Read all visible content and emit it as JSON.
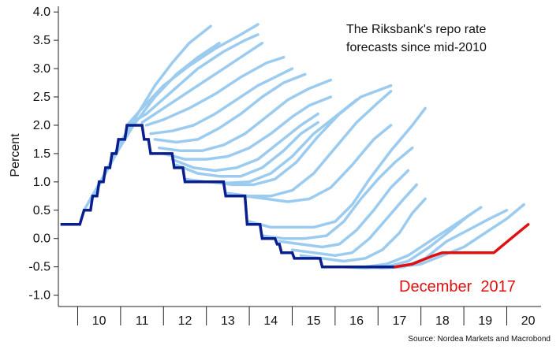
{
  "chart_data": {
    "type": "line",
    "title": "The Riksbank's repo rate forecasts since mid-2010",
    "title_lines": [
      "The Riksbank's repo rate",
      "forecasts since mid-2010"
    ],
    "ylabel": "Percent",
    "xlabel": "",
    "source": "Source: Nordea Markets and Macrobond",
    "annotation": "December  2017",
    "ylim": [
      -1.2,
      4.1
    ],
    "xlim": [
      9.55,
      20.8
    ],
    "y_ticks": [
      "4.0",
      "3.5",
      "3.0",
      "2.5",
      "2.0",
      "1.5",
      "1.0",
      "0.5",
      "0.0",
      "-0.5",
      "-1.0"
    ],
    "y_tick_values": [
      4.0,
      3.5,
      3.0,
      2.5,
      2.0,
      1.5,
      1.0,
      0.5,
      0.0,
      -0.5,
      -1.0
    ],
    "x_tick_labels": [
      "10",
      "11",
      "12",
      "13",
      "14",
      "15",
      "16",
      "17",
      "18",
      "19",
      "20"
    ],
    "x_tick_values": [
      10.5,
      11.5,
      12.5,
      13.5,
      14.5,
      15.5,
      16.5,
      17.5,
      18.5,
      19.5,
      20.5
    ],
    "colors": {
      "actual": "#0a1f8f",
      "forecasts": "#9ccbf0",
      "latest_forecast": "#e01010",
      "annotation": "#e01010"
    },
    "series": [
      {
        "role": "actual",
        "points": [
          [
            9.6,
            0.25
          ],
          [
            10.05,
            0.25
          ],
          [
            10.15,
            0.5
          ],
          [
            10.3,
            0.5
          ],
          [
            10.35,
            0.75
          ],
          [
            10.45,
            0.75
          ],
          [
            10.5,
            1.0
          ],
          [
            10.6,
            1.0
          ],
          [
            10.65,
            1.25
          ],
          [
            10.75,
            1.25
          ],
          [
            10.8,
            1.5
          ],
          [
            10.9,
            1.5
          ],
          [
            10.95,
            1.75
          ],
          [
            11.1,
            1.75
          ],
          [
            11.15,
            2.0
          ],
          [
            11.5,
            2.0
          ],
          [
            11.55,
            1.75
          ],
          [
            11.65,
            1.75
          ],
          [
            11.7,
            1.5
          ],
          [
            12.2,
            1.5
          ],
          [
            12.25,
            1.25
          ],
          [
            12.45,
            1.25
          ],
          [
            12.5,
            1.0
          ],
          [
            13.4,
            1.0
          ],
          [
            13.45,
            0.75
          ],
          [
            13.9,
            0.75
          ],
          [
            13.95,
            0.25
          ],
          [
            14.25,
            0.25
          ],
          [
            14.3,
            0.0
          ],
          [
            14.6,
            0.0
          ],
          [
            14.65,
            -0.1
          ],
          [
            14.7,
            -0.1
          ],
          [
            14.75,
            -0.25
          ],
          [
            15.0,
            -0.25
          ],
          [
            15.05,
            -0.35
          ],
          [
            15.65,
            -0.35
          ],
          [
            15.7,
            -0.5
          ],
          [
            17.4,
            -0.5
          ]
        ]
      },
      {
        "role": "latest_forecast",
        "points": [
          [
            17.4,
            -0.5
          ],
          [
            17.8,
            -0.45
          ],
          [
            18.3,
            -0.3
          ],
          [
            18.5,
            -0.25
          ],
          [
            19.0,
            -0.25
          ],
          [
            19.7,
            -0.25
          ],
          [
            20.1,
            0.0
          ],
          [
            20.5,
            0.25
          ]
        ]
      },
      {
        "role": "forecast",
        "points": [
          [
            10.15,
            0.5
          ],
          [
            10.6,
            1.1
          ],
          [
            11.0,
            1.7
          ],
          [
            11.4,
            2.2
          ],
          [
            11.8,
            2.7
          ],
          [
            12.2,
            3.1
          ],
          [
            12.6,
            3.45
          ],
          [
            13.1,
            3.75
          ]
        ]
      },
      {
        "role": "forecast",
        "points": [
          [
            10.4,
            0.8
          ],
          [
            10.9,
            1.5
          ],
          [
            11.3,
            2.0
          ],
          [
            11.8,
            2.5
          ],
          [
            12.3,
            2.9
          ],
          [
            12.8,
            3.2
          ],
          [
            13.3,
            3.45
          ]
        ]
      },
      {
        "role": "forecast",
        "points": [
          [
            11.15,
            2.0
          ],
          [
            11.5,
            2.3
          ],
          [
            12.0,
            2.7
          ],
          [
            12.6,
            3.05
          ],
          [
            13.2,
            3.35
          ],
          [
            13.8,
            3.6
          ],
          [
            14.2,
            3.78
          ]
        ]
      },
      {
        "role": "forecast",
        "points": [
          [
            11.15,
            2.0
          ],
          [
            11.6,
            2.2
          ],
          [
            12.2,
            2.6
          ],
          [
            12.8,
            3.0
          ],
          [
            13.4,
            3.3
          ],
          [
            13.9,
            3.5
          ],
          [
            14.2,
            3.6
          ]
        ]
      },
      {
        "role": "forecast",
        "points": [
          [
            11.5,
            2.05
          ],
          [
            12.0,
            2.3
          ],
          [
            12.6,
            2.6
          ],
          [
            13.2,
            2.9
          ],
          [
            13.8,
            3.2
          ],
          [
            14.3,
            3.45
          ]
        ]
      },
      {
        "role": "forecast",
        "points": [
          [
            11.6,
            2.0
          ],
          [
            12.0,
            2.1
          ],
          [
            12.6,
            2.3
          ],
          [
            13.2,
            2.55
          ],
          [
            13.8,
            2.85
          ],
          [
            14.4,
            3.1
          ],
          [
            14.8,
            3.2
          ]
        ]
      },
      {
        "role": "forecast",
        "points": [
          [
            11.7,
            1.85
          ],
          [
            12.2,
            1.9
          ],
          [
            12.7,
            2.0
          ],
          [
            13.2,
            2.2
          ],
          [
            13.7,
            2.45
          ],
          [
            14.2,
            2.7
          ],
          [
            14.6,
            2.85
          ],
          [
            15.0,
            3.0
          ]
        ]
      },
      {
        "role": "forecast",
        "points": [
          [
            11.8,
            1.75
          ],
          [
            12.3,
            1.7
          ],
          [
            12.8,
            1.75
          ],
          [
            13.3,
            1.95
          ],
          [
            13.8,
            2.2
          ],
          [
            14.3,
            2.5
          ],
          [
            14.8,
            2.75
          ],
          [
            15.3,
            2.9
          ]
        ]
      },
      {
        "role": "forecast",
        "points": [
          [
            11.9,
            1.6
          ],
          [
            12.4,
            1.55
          ],
          [
            12.9,
            1.55
          ],
          [
            13.4,
            1.65
          ],
          [
            13.9,
            1.85
          ],
          [
            14.4,
            2.15
          ],
          [
            14.9,
            2.45
          ],
          [
            15.4,
            2.65
          ],
          [
            15.9,
            2.8
          ]
        ]
      },
      {
        "role": "forecast",
        "points": [
          [
            12.0,
            1.5
          ],
          [
            12.5,
            1.4
          ],
          [
            13.0,
            1.4
          ],
          [
            13.5,
            1.45
          ],
          [
            14.0,
            1.6
          ],
          [
            14.5,
            1.85
          ],
          [
            15.0,
            2.15
          ],
          [
            15.4,
            2.35
          ],
          [
            15.9,
            2.5
          ]
        ]
      },
      {
        "role": "forecast",
        "points": [
          [
            12.2,
            1.4
          ],
          [
            12.7,
            1.25
          ],
          [
            13.2,
            1.2
          ],
          [
            13.7,
            1.25
          ],
          [
            14.2,
            1.4
          ],
          [
            14.7,
            1.7
          ],
          [
            15.2,
            2.0
          ],
          [
            15.6,
            2.2
          ]
        ]
      },
      {
        "role": "forecast",
        "points": [
          [
            12.3,
            1.3
          ],
          [
            12.8,
            1.15
          ],
          [
            13.3,
            1.1
          ],
          [
            13.8,
            1.1
          ],
          [
            14.3,
            1.25
          ],
          [
            14.8,
            1.55
          ],
          [
            15.2,
            1.85
          ],
          [
            15.6,
            2.05
          ]
        ]
      },
      {
        "role": "forecast",
        "points": [
          [
            12.5,
            1.05
          ],
          [
            13.0,
            1.0
          ],
          [
            13.5,
            0.98
          ],
          [
            14.0,
            1.0
          ],
          [
            14.5,
            1.15
          ],
          [
            15.0,
            1.45
          ],
          [
            15.5,
            1.85
          ],
          [
            16.0,
            2.15
          ],
          [
            16.5,
            2.45
          ]
        ]
      },
      {
        "role": "forecast",
        "points": [
          [
            13.1,
            1.0
          ],
          [
            13.6,
            0.95
          ],
          [
            14.1,
            0.95
          ],
          [
            14.6,
            1.05
          ],
          [
            15.1,
            1.35
          ],
          [
            15.6,
            1.8
          ],
          [
            16.1,
            2.2
          ],
          [
            16.6,
            2.5
          ],
          [
            17.3,
            2.7
          ]
        ]
      },
      {
        "role": "forecast",
        "points": [
          [
            13.5,
            0.8
          ],
          [
            14.0,
            0.75
          ],
          [
            14.5,
            0.75
          ],
          [
            15.0,
            0.85
          ],
          [
            15.5,
            1.15
          ],
          [
            16.0,
            1.6
          ],
          [
            16.5,
            2.05
          ],
          [
            17.0,
            2.4
          ],
          [
            17.3,
            2.6
          ]
        ]
      },
      {
        "role": "forecast",
        "points": [
          [
            13.9,
            0.75
          ],
          [
            14.4,
            0.7
          ],
          [
            14.9,
            0.65
          ],
          [
            15.4,
            0.7
          ],
          [
            15.9,
            0.9
          ],
          [
            16.4,
            1.3
          ],
          [
            16.9,
            1.75
          ],
          [
            17.3,
            2.0
          ]
        ]
      },
      {
        "role": "forecast",
        "points": [
          [
            14.0,
            0.3
          ],
          [
            14.5,
            0.2
          ],
          [
            15.0,
            0.2
          ],
          [
            15.5,
            0.2
          ],
          [
            16.0,
            0.3
          ],
          [
            16.4,
            0.6
          ],
          [
            16.8,
            1.05
          ],
          [
            17.3,
            1.55
          ],
          [
            17.8,
            2.0
          ],
          [
            18.1,
            2.3
          ]
        ]
      },
      {
        "role": "forecast",
        "points": [
          [
            14.3,
            0.05
          ],
          [
            14.8,
            0.0
          ],
          [
            15.3,
            0.0
          ],
          [
            15.8,
            0.05
          ],
          [
            16.2,
            0.3
          ],
          [
            16.6,
            0.7
          ],
          [
            17.0,
            1.05
          ],
          [
            17.4,
            1.35
          ],
          [
            17.8,
            1.6
          ]
        ]
      },
      {
        "role": "forecast",
        "points": [
          [
            14.7,
            -0.05
          ],
          [
            15.2,
            -0.1
          ],
          [
            15.7,
            -0.15
          ],
          [
            16.1,
            -0.1
          ],
          [
            16.5,
            0.15
          ],
          [
            16.9,
            0.5
          ],
          [
            17.3,
            0.9
          ],
          [
            17.7,
            1.2
          ]
        ]
      },
      {
        "role": "forecast",
        "points": [
          [
            15.0,
            -0.2
          ],
          [
            15.5,
            -0.25
          ],
          [
            16.0,
            -0.3
          ],
          [
            16.4,
            -0.25
          ],
          [
            16.8,
            0.0
          ],
          [
            17.2,
            0.35
          ],
          [
            17.6,
            0.7
          ],
          [
            17.9,
            0.95
          ]
        ]
      },
      {
        "role": "forecast",
        "points": [
          [
            15.2,
            -0.3
          ],
          [
            15.7,
            -0.35
          ],
          [
            16.2,
            -0.4
          ],
          [
            16.7,
            -0.35
          ],
          [
            17.1,
            -0.2
          ],
          [
            17.5,
            0.1
          ],
          [
            17.8,
            0.45
          ],
          [
            18.1,
            0.7
          ]
        ]
      },
      {
        "role": "forecast",
        "points": [
          [
            15.7,
            -0.5
          ],
          [
            16.2,
            -0.5
          ],
          [
            16.7,
            -0.5
          ],
          [
            17.2,
            -0.45
          ],
          [
            17.7,
            -0.3
          ],
          [
            18.2,
            -0.05
          ],
          [
            18.7,
            0.2
          ],
          [
            19.2,
            0.45
          ]
        ]
      },
      {
        "role": "forecast",
        "points": [
          [
            16.2,
            -0.5
          ],
          [
            16.7,
            -0.52
          ],
          [
            17.2,
            -0.5
          ],
          [
            17.7,
            -0.4
          ],
          [
            18.2,
            -0.15
          ],
          [
            18.7,
            0.15
          ],
          [
            19.1,
            0.4
          ],
          [
            19.4,
            0.55
          ]
        ]
      },
      {
        "role": "forecast",
        "points": [
          [
            16.6,
            -0.5
          ],
          [
            17.1,
            -0.52
          ],
          [
            17.6,
            -0.5
          ],
          [
            18.1,
            -0.35
          ],
          [
            18.6,
            -0.05
          ],
          [
            19.1,
            0.15
          ],
          [
            19.6,
            0.35
          ],
          [
            20.0,
            0.5
          ]
        ]
      },
      {
        "role": "forecast",
        "points": [
          [
            17.0,
            -0.5
          ],
          [
            17.5,
            -0.5
          ],
          [
            18.0,
            -0.45
          ],
          [
            18.5,
            -0.3
          ],
          [
            19.0,
            -0.15
          ],
          [
            19.5,
            0.1
          ],
          [
            20.0,
            0.35
          ],
          [
            20.4,
            0.6
          ]
        ]
      }
    ]
  }
}
